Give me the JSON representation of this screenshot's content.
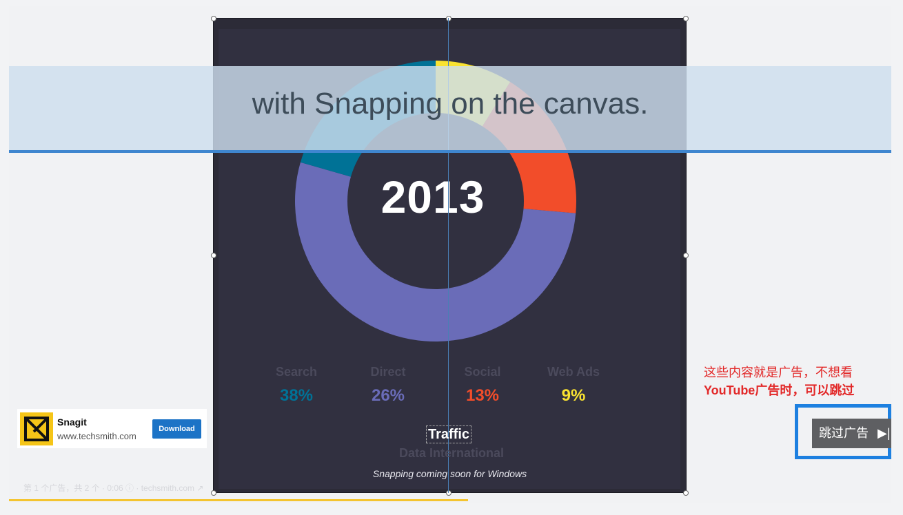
{
  "banner": {
    "text": "with Snapping on the canvas."
  },
  "chart": {
    "year": "2013",
    "segments": [
      {
        "name": "Search",
        "color": "#007296"
      },
      {
        "name": "Direct",
        "color": "#6a6cb8"
      },
      {
        "name": "Social",
        "color": "#f24d2a"
      },
      {
        "name": "Web Ads",
        "color": "#f9e231"
      }
    ],
    "legend": [
      {
        "label": "Search",
        "value": "38%",
        "color": "#007296"
      },
      {
        "label": "Direct",
        "value": "26%",
        "color": "#6a6cb8"
      },
      {
        "label": "Social",
        "value": "13%",
        "color": "#f24d2a"
      },
      {
        "label": "Web Ads",
        "value": "9%",
        "color": "#f9e231"
      }
    ],
    "title": "Traffic",
    "subtitle": "Data International"
  },
  "snap_note": "Snapping coming soon for Windows",
  "ad": {
    "name": "Snagit",
    "url": "www.techsmith.com",
    "download_label": "Download",
    "info": "第 1 个广告，共 2 个 · 0:06 ⓘ · techsmith.com ↗",
    "progress_fraction": 0.52
  },
  "annotation": {
    "line1": "这些内容就是广告，不想看",
    "line2": "YouTube广告时，可以跳过"
  },
  "skip": {
    "label": "跳过广告"
  },
  "colors": {
    "accent": "#3f86cf",
    "frame": "#2c2b37",
    "skip_border": "#1d80e0",
    "annotation": "#e22828"
  }
}
